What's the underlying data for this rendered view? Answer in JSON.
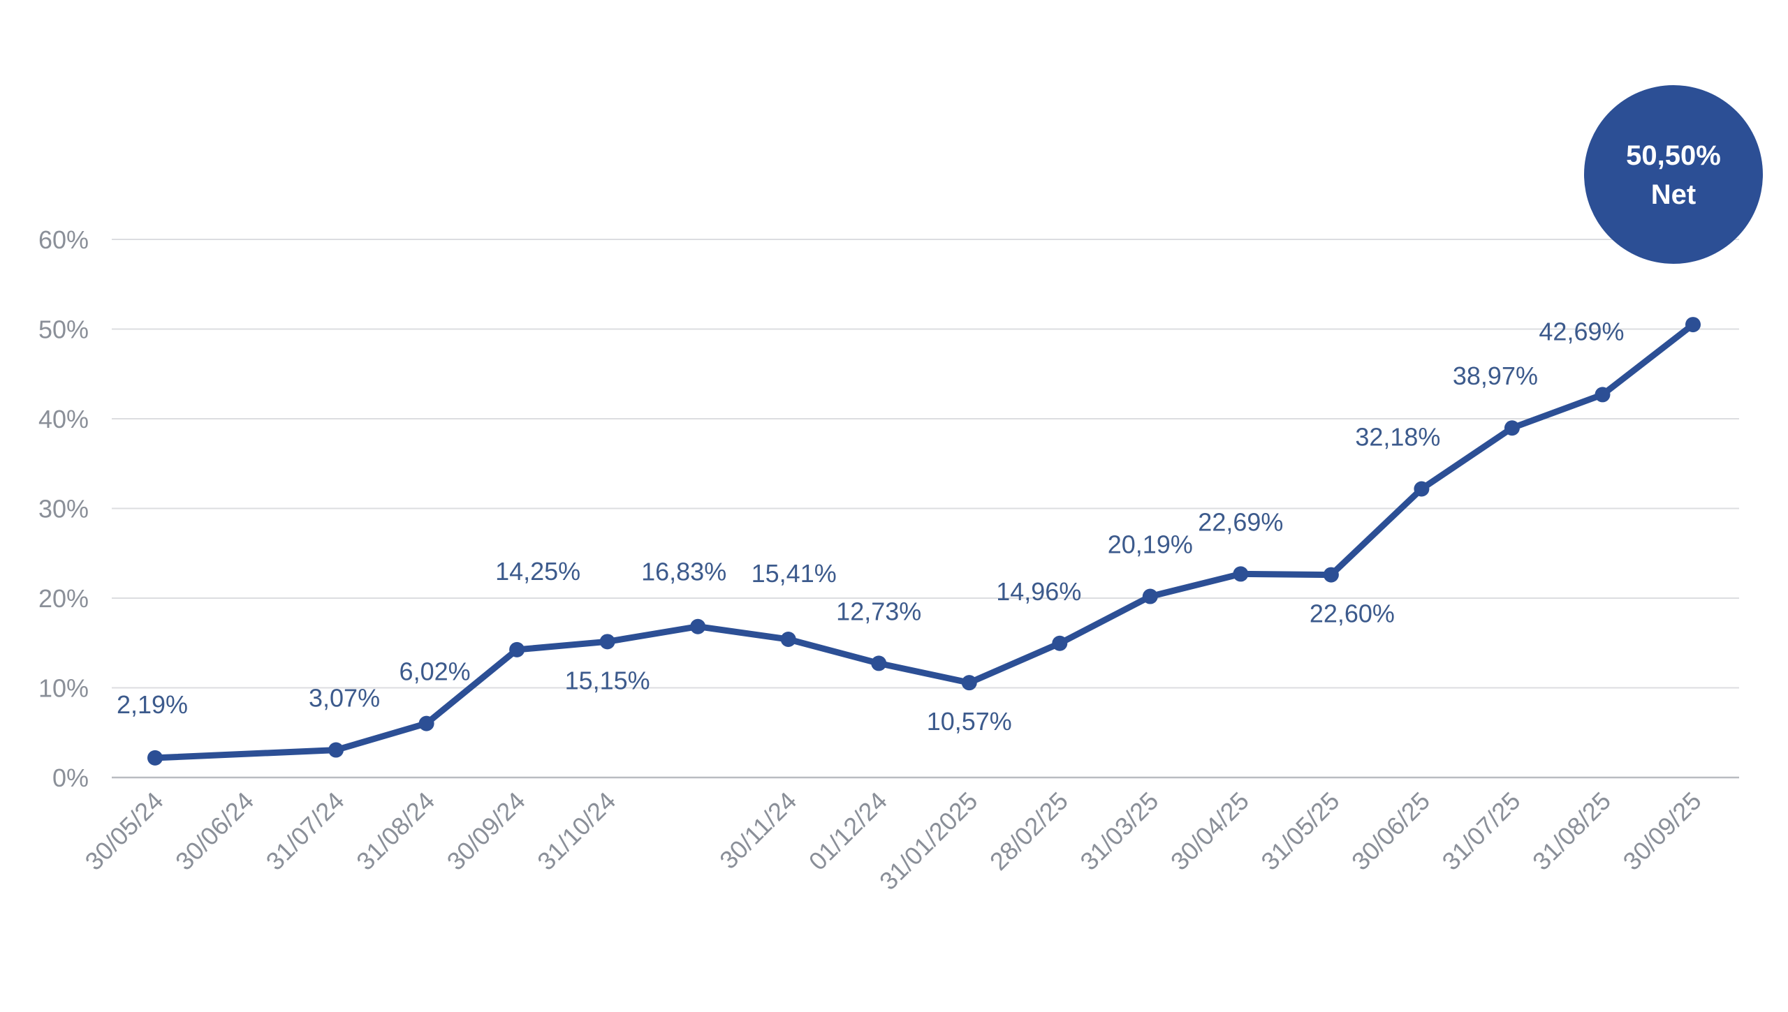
{
  "chart_data": {
    "type": "line",
    "x": [
      "30/05/24",
      "30/06/24",
      "31/07/24",
      "31/08/24",
      "30/09/24",
      "31/10/24",
      "",
      "30/11/24",
      "01/12/24",
      "31/01/2025",
      "28/02/25",
      "31/03/25",
      "30/04/25",
      "31/05/25",
      "30/06/25",
      "31/07/25",
      "31/08/25",
      "30/09/25"
    ],
    "series": [
      {
        "values": [
          2.19,
          null,
          3.07,
          6.02,
          14.25,
          15.15,
          16.83,
          15.41,
          12.73,
          10.57,
          14.96,
          20.19,
          22.69,
          22.6,
          32.18,
          38.97,
          42.69,
          50.5
        ],
        "data_labels": [
          "2,19%",
          "",
          "3,07%",
          "6,02%",
          "14,25%",
          "15,15%",
          "16,83%",
          "15,41%",
          "12,73%",
          "10,57%",
          "14,96%",
          "20,19%",
          "22,69%",
          "22,60%",
          "32,18%",
          "38,97%",
          "42,69%",
          ""
        ]
      }
    ],
    "y_ticks": [
      "0%",
      "10%",
      "20%",
      "30%",
      "40%",
      "50%",
      "60%"
    ],
    "ylim": [
      0,
      60
    ],
    "grid": true,
    "legend": "none",
    "xlabel": "",
    "ylabel": "",
    "title": "",
    "highlight": {
      "value_text": "50,50%",
      "caption": "Net"
    }
  },
  "colors": {
    "line": "#2c4f95",
    "badge": "#2c4f95",
    "grid": "#dcdde0",
    "axis": "#b9bcc1"
  }
}
